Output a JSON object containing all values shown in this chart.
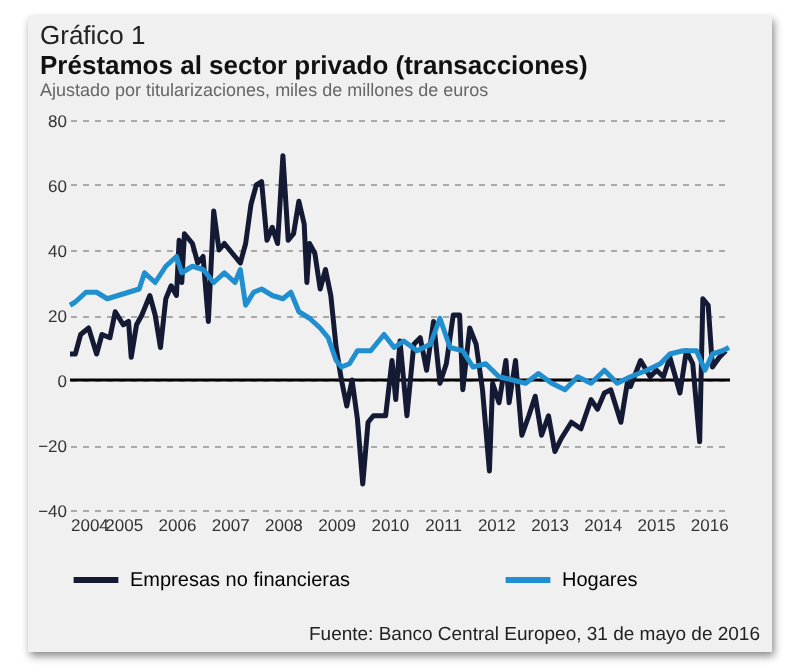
{
  "chart_data": {
    "type": "line",
    "title": "Préstamos al sector privado (transacciones)",
    "subtitle": "Ajustado por titularizaciones, miles de millones de euros",
    "annotations": [
      "Gráfico 1",
      "Fuente: Banco Central Europeo, 31 de mayo de 2016"
    ],
    "xlim": [
      2004,
      2016.4
    ],
    "xticks": [
      2004,
      2005,
      2006,
      2007,
      2008,
      2009,
      2010,
      2011,
      2012,
      2013,
      2014,
      2015,
      2016
    ],
    "ylim": [
      -40,
      80
    ],
    "yticks": [
      -40,
      -20,
      0,
      20,
      40,
      60,
      80
    ],
    "grid": "y",
    "legend": "bottom",
    "ref_lines": [
      {
        "axis": "y",
        "value": 0,
        "color": "#000000"
      }
    ],
    "series": [
      {
        "name": "Empresas no financieras",
        "color": "#141a33",
        "x": [
          2004.0,
          2004.1,
          2004.2,
          2004.35,
          2004.5,
          2004.6,
          2004.75,
          2004.85,
          2005.0,
          2005.1,
          2005.15,
          2005.25,
          2005.35,
          2005.5,
          2005.6,
          2005.7,
          2005.8,
          2005.9,
          2006.0,
          2006.05,
          2006.1,
          2006.15,
          2006.3,
          2006.4,
          2006.5,
          2006.6,
          2006.7,
          2006.8,
          2006.9,
          2007.0,
          2007.1,
          2007.2,
          2007.3,
          2007.4,
          2007.5,
          2007.6,
          2007.7,
          2007.8,
          2007.9,
          2008.0,
          2008.1,
          2008.2,
          2008.3,
          2008.4,
          2008.45,
          2008.5,
          2008.6,
          2008.7,
          2008.8,
          2008.9,
          2009.0,
          2009.1,
          2009.2,
          2009.3,
          2009.4,
          2009.5,
          2009.6,
          2009.7,
          2009.8,
          2009.93,
          2010.05,
          2010.12,
          2010.2,
          2010.33,
          2010.46,
          2010.58,
          2010.7,
          2010.83,
          2010.95,
          2011.07,
          2011.2,
          2011.32,
          2011.38,
          2011.51,
          2011.63,
          2011.75,
          2011.88,
          2011.94,
          2012.06,
          2012.19,
          2012.25,
          2012.37,
          2012.49,
          2012.62,
          2012.74,
          2012.86,
          2012.99,
          2013.11,
          2013.23,
          2013.42,
          2013.6,
          2013.79,
          2013.91,
          2014.04,
          2014.16,
          2014.35,
          2014.47,
          2014.53,
          2014.72,
          2014.9,
          2015.02,
          2015.15,
          2015.27,
          2015.46,
          2015.58,
          2015.7,
          2015.83,
          2015.89,
          2015.99,
          2016.07,
          2016.2,
          2016.32
        ],
        "values": [
          8,
          8,
          14,
          16,
          8,
          14,
          13,
          21,
          17,
          18,
          7,
          17,
          20,
          26,
          20,
          10,
          25,
          29,
          26,
          43,
          30,
          45,
          42,
          36,
          38,
          18,
          52,
          40,
          42,
          40,
          38,
          36,
          42,
          54,
          60,
          61,
          43,
          47,
          42,
          69,
          43,
          45,
          55,
          48,
          30,
          42,
          39,
          28,
          34,
          26,
          10,
          0,
          -8,
          0,
          -12,
          -32,
          -13,
          -11,
          -11,
          -11,
          6,
          -6,
          12,
          -11,
          11,
          13,
          3,
          18,
          -1,
          5,
          20,
          20,
          -3,
          16,
          11,
          -3,
          -28,
          -1,
          -7,
          6,
          -7,
          6,
          -17,
          -11,
          -5,
          -17,
          -11,
          -22,
          -18,
          -13,
          -15,
          -6,
          -9,
          -4,
          -3,
          -13,
          -1,
          -2,
          6,
          1,
          3,
          1,
          7,
          -4,
          9,
          5,
          -19,
          25,
          23,
          4,
          7,
          9
        ]
      },
      {
        "name": "Hogares",
        "color": "#1f8fcf",
        "x": [
          2004.0,
          2004.1,
          2004.3,
          2004.5,
          2004.7,
          2004.9,
          2005.1,
          2005.3,
          2005.4,
          2005.6,
          2005.8,
          2006.0,
          2006.1,
          2006.3,
          2006.5,
          2006.7,
          2006.9,
          2007.1,
          2007.2,
          2007.3,
          2007.45,
          2007.6,
          2007.8,
          2008.0,
          2008.15,
          2008.3,
          2008.5,
          2008.7,
          2008.85,
          2009.0,
          2009.1,
          2009.25,
          2009.4,
          2009.65,
          2009.9,
          2010.09,
          2010.27,
          2010.52,
          2010.77,
          2010.95,
          2011.14,
          2011.38,
          2011.57,
          2011.81,
          2012.06,
          2012.31,
          2012.56,
          2012.8,
          2013.05,
          2013.3,
          2013.54,
          2013.79,
          2014.04,
          2014.28,
          2014.53,
          2014.84,
          2015.09,
          2015.27,
          2015.52,
          2015.77,
          2015.93,
          2016.07,
          2016.26,
          2016.38
        ],
        "values": [
          23,
          24,
          27,
          27,
          25,
          26,
          27,
          28,
          33,
          30,
          35,
          38,
          33,
          35,
          34,
          30,
          33,
          30,
          34,
          23,
          27,
          28,
          26,
          25,
          27,
          21,
          19,
          16,
          13,
          6,
          4,
          5,
          9,
          9,
          14,
          10,
          12,
          9,
          11,
          19,
          10,
          9,
          4,
          5,
          1,
          0,
          -1,
          2,
          -1,
          -3,
          1,
          -1,
          3,
          -1,
          1,
          3,
          5,
          8,
          9,
          9,
          3,
          8,
          9,
          10
        ]
      }
    ]
  }
}
